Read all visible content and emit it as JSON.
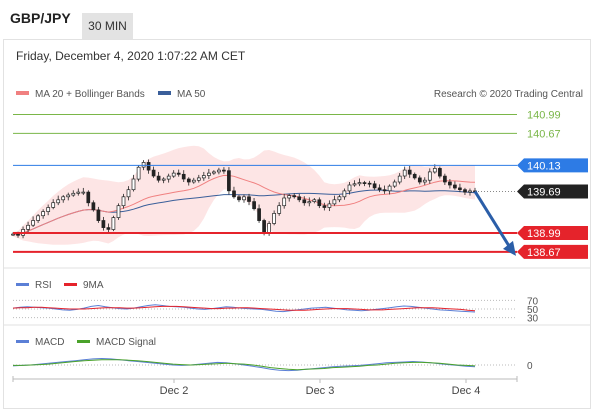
{
  "header": {
    "symbol": "GBP/JPY",
    "timeframe": "30 MIN"
  },
  "date_label": "Friday, December 4, 2020 1:07:22 AM CET",
  "colors": {
    "resistance": "#7ab648",
    "pivot": "#2d7be5",
    "support": "#e5232b",
    "ma20": "#f08080",
    "ma50": "#3a5f9a",
    "bollinger_fill": "#fde2e2",
    "price_tag": "#222222",
    "rsi": "#5b7fd6",
    "rsi_ma": "#e5232b",
    "macd": "#5b7fd6",
    "macd_signal": "#4aa22a"
  },
  "chart_data": [
    {
      "type": "candlestick",
      "title": "GBP/JPY",
      "legend": [
        "MA 20 + Bollinger Bands",
        "MA 50"
      ],
      "credit": "Research © 2020 Trading Central",
      "x_ticks": [
        "Dec 2",
        "Dec 3",
        "Dec 4"
      ],
      "ylim": [
        138.5,
        141.2
      ],
      "levels": [
        {
          "value": 140.99,
          "label": "140.99",
          "kind": "resistance"
        },
        {
          "value": 140.67,
          "label": "140.67",
          "kind": "resistance"
        },
        {
          "value": 140.13,
          "label": "140.13",
          "kind": "pivot"
        },
        {
          "value": 138.99,
          "label": "138.99",
          "kind": "support"
        },
        {
          "value": 138.67,
          "label": "138.67",
          "kind": "support"
        }
      ],
      "last_price": {
        "value": 139.69,
        "label": "139.69"
      },
      "forecast_target": 138.67,
      "close_series": [
        138.97,
        138.95,
        139.05,
        139.12,
        139.2,
        139.28,
        139.35,
        139.42,
        139.5,
        139.55,
        139.6,
        139.63,
        139.66,
        139.68,
        139.68,
        139.5,
        139.38,
        139.2,
        139.08,
        139.05,
        139.25,
        139.45,
        139.6,
        139.72,
        139.9,
        140.1,
        140.18,
        140.05,
        139.95,
        139.88,
        139.9,
        139.95,
        140.0,
        139.98,
        139.9,
        139.85,
        139.88,
        139.92,
        139.96,
        140.0,
        140.02,
        140.05,
        140.04,
        139.7,
        139.6,
        139.55,
        139.6,
        139.52,
        139.4,
        139.2,
        139.0,
        139.15,
        139.32,
        139.45,
        139.58,
        139.62,
        139.6,
        139.55,
        139.5,
        139.52,
        139.55,
        139.45,
        139.42,
        139.48,
        139.55,
        139.6,
        139.7,
        139.8,
        139.82,
        139.84,
        139.83,
        139.82,
        139.75,
        139.72,
        139.7,
        139.78,
        139.85,
        139.95,
        140.05,
        139.98,
        139.92,
        139.85,
        139.88,
        140.02,
        140.08,
        139.95,
        139.85,
        139.8,
        139.75,
        139.72,
        139.68,
        139.7,
        139.69
      ]
    },
    {
      "type": "line",
      "title": "RSI",
      "legend": [
        "RSI",
        "9MA"
      ],
      "y_ticks": [
        "70",
        "50",
        "30"
      ],
      "ylim": [
        20,
        80
      ],
      "rsi": [
        52,
        54,
        55,
        54,
        53,
        52,
        50,
        48,
        47,
        49,
        52,
        56,
        58,
        55,
        53,
        51,
        50,
        52,
        55,
        58,
        60,
        58,
        56,
        55,
        54,
        52,
        50,
        49,
        51,
        53,
        55,
        54,
        52,
        51,
        50,
        49,
        47,
        45,
        44,
        46,
        48,
        50,
        52,
        53,
        54,
        52,
        50,
        48,
        47,
        46,
        47,
        49,
        51,
        53,
        55,
        57,
        56,
        54,
        52,
        50,
        48,
        47,
        46,
        45,
        44,
        43
      ],
      "ma9": [
        52,
        53,
        53,
        54,
        54,
        53,
        52,
        51,
        50,
        50,
        50,
        51,
        52,
        53,
        53,
        53,
        52,
        52,
        53,
        54,
        55,
        56,
        56,
        56,
        55,
        54,
        53,
        52,
        51,
        51,
        52,
        52,
        53,
        53,
        52,
        51,
        50,
        49,
        48,
        47,
        47,
        47,
        48,
        49,
        50,
        51,
        51,
        51,
        50,
        49,
        48,
        48,
        48,
        49,
        50,
        51,
        52,
        53,
        53,
        53,
        52,
        51,
        50,
        49,
        47,
        46
      ]
    },
    {
      "type": "line",
      "title": "MACD",
      "legend": [
        "MACD",
        "MACD Signal"
      ],
      "y_ticks": [
        "0"
      ],
      "ylim": [
        -0.3,
        0.3
      ],
      "macd": [
        -0.02,
        -0.01,
        0.0,
        0.02,
        0.04,
        0.06,
        0.08,
        0.1,
        0.12,
        0.14,
        0.15,
        0.14,
        0.12,
        0.1,
        0.08,
        0.06,
        0.04,
        0.02,
        0.0,
        -0.01,
        -0.0,
        0.02,
        0.04,
        0.06,
        0.05,
        0.03,
        0.0,
        -0.03,
        -0.06,
        -0.1,
        -0.12,
        -0.13,
        -0.12,
        -0.1,
        -0.08,
        -0.06,
        -0.04,
        -0.03,
        -0.02,
        -0.01,
        0.01,
        0.03,
        0.05,
        0.06,
        0.07,
        0.08,
        0.07,
        0.05,
        0.03,
        0.01,
        -0.01,
        -0.03,
        -0.04
      ],
      "signal": [
        -0.01,
        -0.01,
        0.0,
        0.01,
        0.02,
        0.04,
        0.06,
        0.08,
        0.1,
        0.11,
        0.12,
        0.12,
        0.12,
        0.11,
        0.1,
        0.08,
        0.06,
        0.04,
        0.02,
        0.01,
        0.0,
        0.01,
        0.02,
        0.03,
        0.04,
        0.03,
        0.02,
        0.0,
        -0.03,
        -0.06,
        -0.08,
        -0.1,
        -0.11,
        -0.1,
        -0.09,
        -0.08,
        -0.06,
        -0.05,
        -0.04,
        -0.03,
        -0.01,
        0.0,
        0.02,
        0.04,
        0.05,
        0.06,
        0.06,
        0.05,
        0.04,
        0.02,
        0.0,
        -0.01,
        -0.02
      ]
    }
  ]
}
